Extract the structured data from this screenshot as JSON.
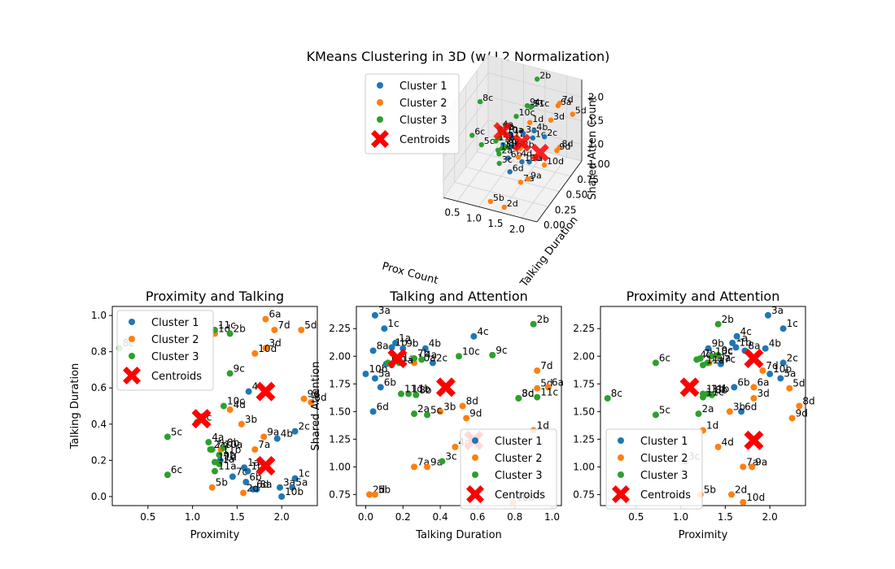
{
  "title": "KMeans Clustering in 3D (w/ L2 Normalization)",
  "colors": {
    "c1": "#1f77b4",
    "c2": "#ff7f0e",
    "c3": "#2ca02c",
    "centroid": "#ff0000"
  },
  "legend": {
    "c1": "Cluster 1",
    "c2": "Cluster 2",
    "c3": "Cluster 3",
    "centroid": "Centroids"
  },
  "chart_data": [
    {
      "type": "scatter",
      "projection": "3d",
      "xlabel": "Prox Count",
      "ylabel": "Talking Duration",
      "zlabel": "Shared Atten Count",
      "x_ticks": [
        "0.5",
        "1.0",
        "1.5",
        "2.0",
        "2.5"
      ],
      "y_ticks": [
        "0.00",
        "0.25",
        "0.50",
        "0.75",
        "1.00"
      ],
      "z_ticks": [
        "1.0",
        "1.5",
        "2.0"
      ],
      "xlim": [
        0.18,
        2.35
      ],
      "ylim": [
        0,
        1
      ],
      "zlim": [
        0.65,
        2.37
      ],
      "legend_position": "upper-left",
      "uses_points_of": "panel-data"
    },
    {
      "type": "scatter",
      "title": "Proximity and Talking",
      "xlabel": "Proximity",
      "ylabel": "Talking Duration",
      "xlim": [
        0.1,
        2.4
      ],
      "ylim": [
        -0.05,
        1.05
      ],
      "x_ticks": [
        0.5,
        1.0,
        1.5,
        2.0
      ],
      "y_ticks": [
        0.0,
        0.2,
        0.4,
        0.6,
        0.8,
        1.0
      ],
      "x_tick_labels": [
        "0.5",
        "1.0",
        "1.5",
        "2.0"
      ],
      "y_tick_labels": [
        "0.0",
        "0.2",
        "0.4",
        "0.6",
        "0.8",
        "1.0"
      ],
      "xkey": "p",
      "ykey": "t",
      "legend_position": "upper-left"
    },
    {
      "type": "scatter",
      "title": "Talking and Attention",
      "xlabel": "Talking Duration",
      "ylabel": "Shared Attention",
      "xlim": [
        -0.05,
        1.05
      ],
      "ylim": [
        0.65,
        2.45
      ],
      "x_ticks": [
        0.0,
        0.2,
        0.4,
        0.6,
        0.8,
        1.0
      ],
      "y_ticks": [
        0.75,
        1.0,
        1.25,
        1.5,
        1.75,
        2.0,
        2.25
      ],
      "x_tick_labels": [
        "0.0",
        "0.2",
        "0.4",
        "0.6",
        "0.8",
        "1.0"
      ],
      "y_tick_labels": [
        "0.75",
        "1.00",
        "1.25",
        "1.50",
        "1.75",
        "2.00",
        "2.25"
      ],
      "xkey": "t",
      "ykey": "a",
      "legend_position": "lower-right"
    },
    {
      "type": "scatter",
      "title": "Proximity and Attention",
      "xlabel": "Proximity",
      "ylabel": "",
      "xlim": [
        0.1,
        2.4
      ],
      "ylim": [
        0.65,
        2.45
      ],
      "x_ticks": [
        0.5,
        1.0,
        1.5,
        2.0
      ],
      "y_ticks": [
        0.75,
        1.0,
        1.25,
        1.5,
        1.75,
        2.0,
        2.25
      ],
      "x_tick_labels": [
        "0.5",
        "1.0",
        "1.5",
        "2.0"
      ],
      "y_tick_labels": [
        "0.75",
        "1.00",
        "1.25",
        "1.50",
        "1.75",
        "2.00",
        "2.25"
      ],
      "xkey": "p",
      "ykey": "a",
      "legend_position": "lower-left"
    }
  ],
  "points": [
    {
      "label": "1a",
      "c": 1,
      "p": 1.58,
      "t": 0.16,
      "a": 2.12
    },
    {
      "label": "1b",
      "c": 1,
      "p": 1.62,
      "t": 0.14,
      "a": 2.08
    },
    {
      "label": "1c",
      "c": 1,
      "p": 2.15,
      "t": 0.1,
      "a": 2.25
    },
    {
      "label": "2c",
      "c": 1,
      "p": 2.15,
      "t": 0.36,
      "a": 1.94
    },
    {
      "label": "3a",
      "c": 1,
      "p": 1.98,
      "t": 0.05,
      "a": 2.37
    },
    {
      "label": "4b",
      "c": 1,
      "p": 1.95,
      "t": 0.32,
      "a": 2.07
    },
    {
      "label": "4c",
      "c": 1,
      "p": 1.63,
      "t": 0.58,
      "a": 2.18
    },
    {
      "label": "5a",
      "c": 1,
      "p": 2.12,
      "t": 0.05,
      "a": 1.8
    },
    {
      "label": "6b",
      "c": 1,
      "p": 1.6,
      "t": 0.08,
      "a": 1.72
    },
    {
      "label": "6d",
      "c": 1,
      "p": 1.68,
      "t": 0.04,
      "a": 1.5
    },
    {
      "label": "7c",
      "c": 1,
      "p": 1.45,
      "t": 0.11,
      "a": 1.93
    },
    {
      "label": "8a",
      "c": 1,
      "p": 1.72,
      "t": 0.04,
      "a": 2.05
    },
    {
      "label": "9b",
      "c": 1,
      "p": 1.31,
      "t": 0.2,
      "a": 2.07
    },
    {
      "label": "10b",
      "c": 1,
      "p": 2.0,
      "t": 0.0,
      "a": 1.84
    },
    {
      "label": "1d",
      "c": 2,
      "p": 1.25,
      "t": 0.9,
      "a": 1.33
    },
    {
      "label": "2d",
      "c": 2,
      "p": 1.57,
      "t": 0.02,
      "a": 0.75
    },
    {
      "label": "3b",
      "c": 2,
      "p": 1.55,
      "t": 0.4,
      "a": 1.5
    },
    {
      "label": "3d",
      "c": 2,
      "p": 1.82,
      "t": 0.82,
      "a": 1.62
    },
    {
      "label": "4d",
      "c": 2,
      "p": 1.42,
      "t": 0.48,
      "a": 1.18
    },
    {
      "label": "5b",
      "c": 2,
      "p": 1.22,
      "t": 0.05,
      "a": 0.75
    },
    {
      "label": "5d",
      "c": 2,
      "p": 2.22,
      "t": 0.92,
      "a": 1.71
    },
    {
      "label": "6a",
      "c": 2,
      "p": 1.82,
      "t": 0.98,
      "a": 1.72
    },
    {
      "label": "7a",
      "c": 2,
      "p": 1.7,
      "t": 0.26,
      "a": 1.0
    },
    {
      "label": "7d",
      "c": 2,
      "p": 1.92,
      "t": 0.92,
      "a": 1.87
    },
    {
      "label": "8d",
      "c": 2,
      "p": 2.33,
      "t": 0.52,
      "a": 1.55
    },
    {
      "label": "9a",
      "c": 2,
      "p": 1.8,
      "t": 0.33,
      "a": 1.0
    },
    {
      "label": "9d",
      "c": 2,
      "p": 2.25,
      "t": 0.54,
      "a": 1.44
    },
    {
      "label": "10a",
      "c": 2,
      "p": 1.32,
      "t": 0.26,
      "a": 1.94
    },
    {
      "label": "10d",
      "c": 2,
      "p": 1.7,
      "t": 0.79,
      "a": 0.68
    },
    {
      "label": "1a'",
      "c": 3,
      "p": 1.3,
      "t": 0.18,
      "a": 1.94
    },
    {
      "label": "2a",
      "c": 3,
      "p": 1.2,
      "t": 0.26,
      "a": 1.48
    },
    {
      "label": "2b",
      "c": 3,
      "p": 1.42,
      "t": 0.9,
      "a": 2.29
    },
    {
      "label": "3c",
      "c": 3,
      "p": 1.05,
      "t": 0.41,
      "a": 1.05
    },
    {
      "label": "4a",
      "c": 3,
      "p": 1.18,
      "t": 0.3,
      "a": 1.97
    },
    {
      "label": "5c",
      "c": 3,
      "p": 0.72,
      "t": 0.33,
      "a": 1.47
    },
    {
      "label": "6c",
      "c": 3,
      "p": 0.72,
      "t": 0.12,
      "a": 1.94
    },
    {
      "label": "7b",
      "c": 3,
      "p": 1.22,
      "t": 0.26,
      "a": 1.98
    },
    {
      "label": "8b",
      "c": 3,
      "p": 1.35,
      "t": 0.27,
      "a": 1.65
    },
    {
      "label": "8c",
      "c": 3,
      "p": 0.18,
      "t": 0.82,
      "a": 1.62
    },
    {
      "label": "9c",
      "c": 3,
      "p": 1.42,
      "t": 0.68,
      "a": 2.01
    },
    {
      "label": "10c",
      "c": 3,
      "p": 1.35,
      "t": 0.5,
      "a": 2.0
    },
    {
      "label": "11a",
      "c": 3,
      "p": 1.25,
      "t": 0.14,
      "a": 1.92
    },
    {
      "label": "11b",
      "c": 3,
      "p": 1.3,
      "t": 0.23,
      "a": 1.66
    },
    {
      "label": "11c",
      "c": 3,
      "p": 1.25,
      "t": 0.92,
      "a": 1.63
    },
    {
      "label": "11d",
      "c": 3,
      "p": 1.25,
      "t": 0.19,
      "a": 1.66
    }
  ],
  "centroids": [
    {
      "p": 1.82,
      "t": 0.17,
      "a": 1.98
    },
    {
      "p": 1.82,
      "t": 0.58,
      "a": 1.24
    },
    {
      "p": 1.1,
      "t": 0.43,
      "a": 1.72
    }
  ]
}
